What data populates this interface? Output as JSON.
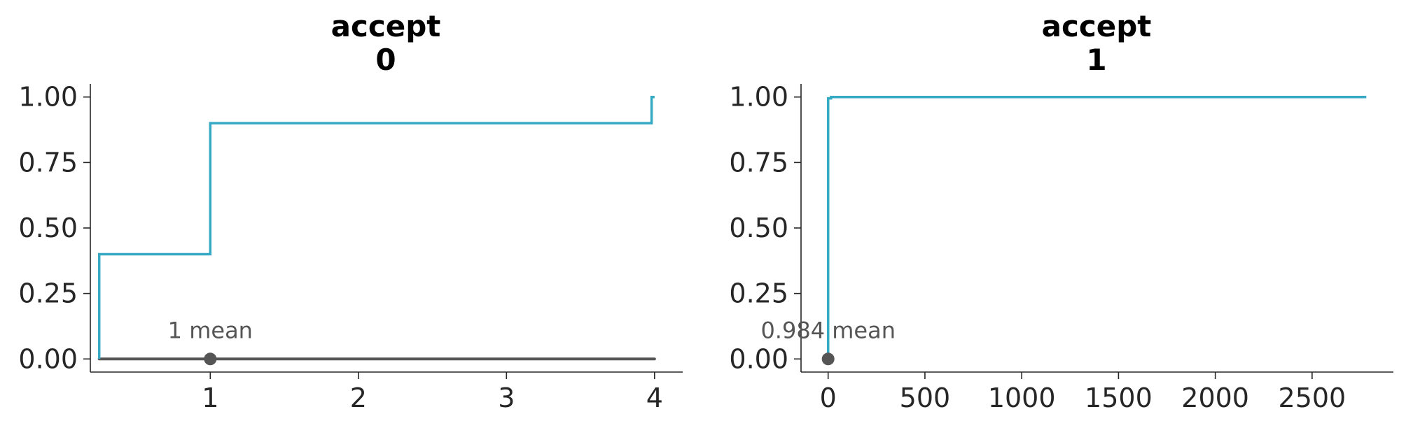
{
  "chart_data": [
    {
      "type": "line",
      "title_line1": "accept",
      "title_line2": "0",
      "x_ticks": [
        1,
        2,
        3,
        4
      ],
      "x_tick_labels": [
        "1",
        "2",
        "3",
        "4"
      ],
      "y_ticks": [
        0,
        0.25,
        0.5,
        0.75,
        1.0
      ],
      "y_tick_labels": [
        "0.00",
        "0.25",
        "0.50",
        "0.75",
        "1.00"
      ],
      "xlim": [
        0.19,
        4.19
      ],
      "ylim": [
        -0.05,
        1.05
      ],
      "series": [
        {
          "step": "post",
          "color": "#36a9c4",
          "x": [
            0.25,
            0.25,
            1.0,
            1.0,
            3.98,
            3.98,
            4.0
          ],
          "y": [
            0.0,
            0.4,
            0.4,
            0.9,
            0.9,
            1.0,
            1.0
          ]
        }
      ],
      "mean_line": {
        "x": [
          0.25,
          4.0
        ],
        "y": 0,
        "color": "#555555"
      },
      "mean_marker": {
        "x": 1.0,
        "y": 0
      },
      "annotation": "1 mean"
    },
    {
      "type": "line",
      "title_line1": "accept",
      "title_line2": "1",
      "x_ticks": [
        0,
        500,
        1000,
        1500,
        2000,
        2500
      ],
      "x_tick_labels": [
        "0",
        "500",
        "1000",
        "1500",
        "2000",
        "2500"
      ],
      "y_ticks": [
        0,
        0.25,
        0.5,
        0.75,
        1.0
      ],
      "y_tick_labels": [
        "0.00",
        "0.25",
        "0.50",
        "0.75",
        "1.00"
      ],
      "xlim": [
        -140,
        2920
      ],
      "ylim": [
        -0.05,
        1.05
      ],
      "series": [
        {
          "step": "post",
          "color": "#36a9c4",
          "x": [
            0,
            0,
            15,
            15,
            2780
          ],
          "y": [
            0.0,
            0.995,
            0.995,
            1.0,
            1.0
          ]
        }
      ],
      "mean_marker": {
        "x": 0,
        "y": 0
      },
      "annotation": "0.984 mean"
    }
  ]
}
